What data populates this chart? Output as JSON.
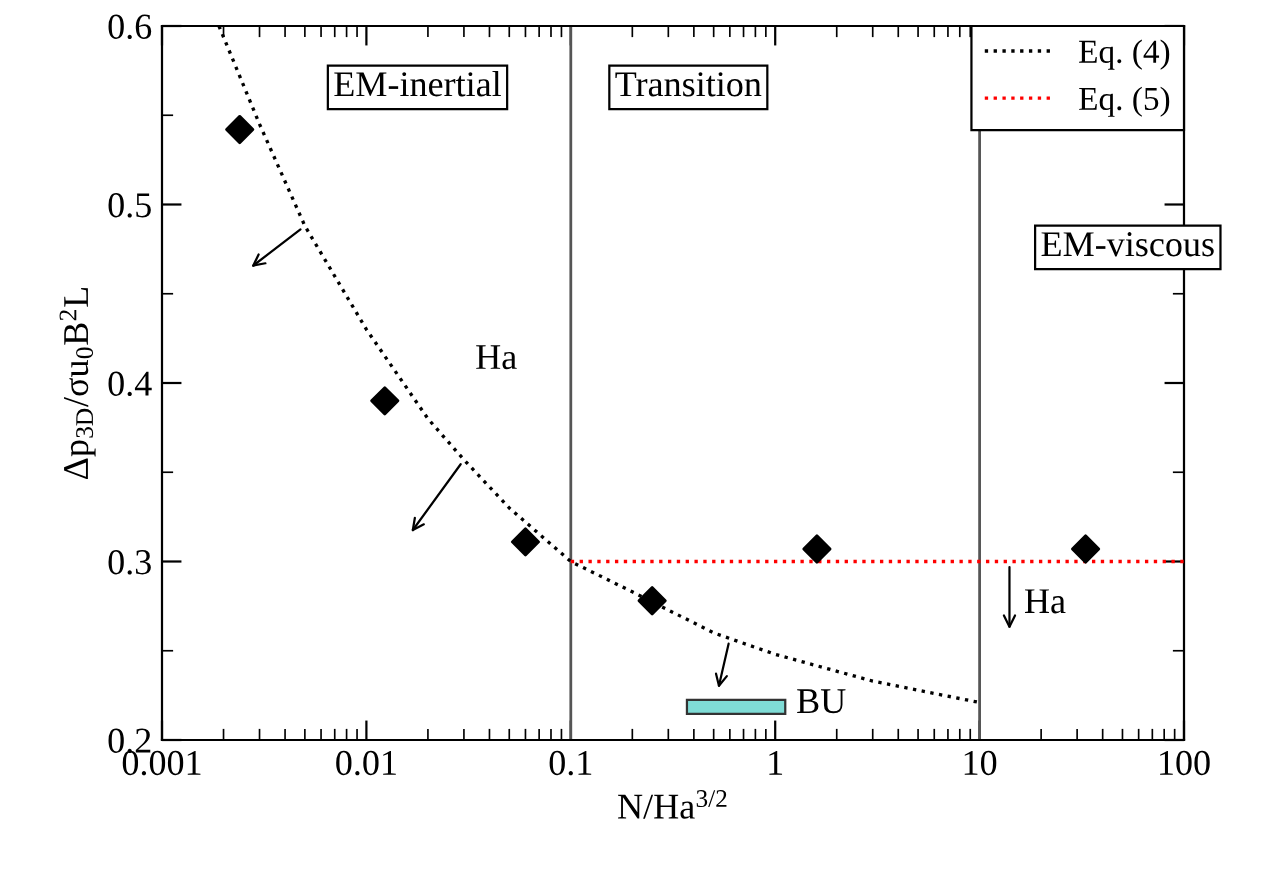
{
  "chart_data": {
    "type": "scatter",
    "xlabel": "N/Ha$^{3/2}$",
    "ylabel": "Δp$_{3D}$/σu$_{0}$B$^{2}$L",
    "log": "x",
    "xlim": [
      0.001,
      100
    ],
    "ylim": [
      0.2,
      0.6
    ],
    "xticks": [
      0.001,
      0.01,
      0.1,
      1,
      10,
      100
    ],
    "yticks": [
      0.2,
      0.3,
      0.4,
      0.5,
      0.6
    ],
    "grid": false,
    "legend": "top right",
    "marker": "diamond",
    "series": [
      {
        "color": "#000000",
        "x": [
          0.0024,
          0.0123,
          0.06,
          0.25,
          1.6,
          33
        ],
        "values": [
          0.542,
          0.39,
          0.311,
          0.278,
          0.307,
          0.307
        ]
      },
      {
        "type": "line",
        "name": "Eq. (4)",
        "color": "#000000",
        "line_style": "dotted",
        "marker": "none",
        "x": [
          0.0019,
          0.003,
          0.005,
          0.01,
          0.02,
          0.03,
          0.05,
          0.1,
          0.2,
          0.5,
          1,
          3,
          10
        ],
        "values": [
          0.6,
          0.545,
          0.488,
          0.43,
          0.38,
          0.357,
          0.33,
          0.3,
          0.283,
          0.26,
          0.248,
          0.233,
          0.221
        ]
      },
      {
        "type": "line",
        "name": "Eq. (5)",
        "color": "#ff0000",
        "line_style": "dotted",
        "marker": "none",
        "x": [
          0.1,
          100
        ],
        "values": [
          0.3,
          0.3
        ]
      }
    ],
    "ref_lines": [
      {
        "axis": "x",
        "value": 0.1,
        "color": "#555555"
      },
      {
        "axis": "x",
        "value": 10,
        "color": "#555555"
      }
    ],
    "annotations": [
      "EM-inertial",
      "Transition",
      "EM-viscous",
      "Ha",
      "Ha",
      "BU"
    ]
  }
}
